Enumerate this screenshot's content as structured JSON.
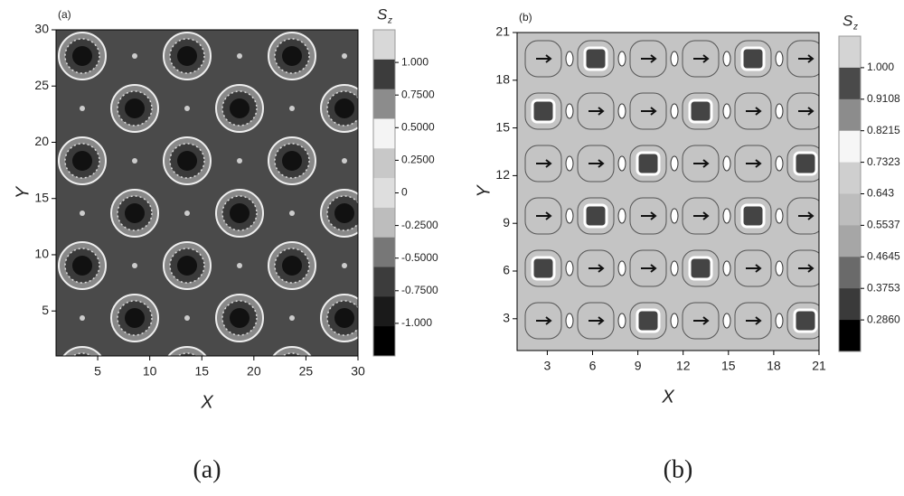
{
  "chart_data": [
    {
      "type": "contour",
      "panel_label": "(a)",
      "caption": "(a)",
      "x_label": "X",
      "y_label": "Y",
      "xlim": [
        1,
        30
      ],
      "ylim": [
        1,
        30
      ],
      "xticks": [
        5,
        10,
        15,
        20,
        25,
        30
      ],
      "yticks": [
        5,
        10,
        15,
        20,
        25,
        30
      ],
      "colorbar_title": "S",
      "colorbar_subscript": "z",
      "colorbar_levels": [
        {
          "value": 1,
          "label": "1.000"
        },
        {
          "value": 0.75,
          "label": "0.7500"
        },
        {
          "value": 0.5,
          "label": "0.5000"
        },
        {
          "value": 0.25,
          "label": "0.2500"
        },
        0,
        {
          "value": -0.25,
          "label": "-0.2500"
        },
        {
          "value": -0.5,
          "label": "-0.5000"
        },
        {
          "value": -0.75,
          "label": "-0.7500"
        },
        {
          "value": -1,
          "label": "-1.000"
        }
      ],
      "colorbar_colors": [
        "#d8d8d8",
        "#3c3c3c",
        "#8c8c8c",
        "#f4f4f4",
        "#c8c8c8",
        "#dedede",
        "#bdbdbd",
        "#777777",
        "#3c3c3c",
        "#1a1a1a",
        "#000000"
      ],
      "background": "#4a4a4a"
    },
    {
      "type": "contour",
      "panel_label": "(b)",
      "caption": "(b)",
      "x_label": "X",
      "y_label": "Y",
      "xlim": [
        1,
        21
      ],
      "ylim": [
        1,
        21
      ],
      "xticks": [
        3,
        6,
        9,
        12,
        15,
        18,
        21
      ],
      "yticks": [
        3,
        6,
        9,
        12,
        15,
        18,
        21
      ],
      "colorbar_title": "S",
      "colorbar_subscript": "z",
      "colorbar_levels": [
        {
          "value": 1,
          "label": "1.000"
        },
        0.9108,
        0.8215,
        0.7323,
        0.643,
        0.5537,
        {
          "value": 0.4645,
          "label": "0.4645"
        },
        0.3753,
        {
          "value": 0.286,
          "label": "0.2860"
        }
      ],
      "colorbar_colors": [
        "#d4d4d4",
        "#4a4a4a",
        "#8c8c8c",
        "#f6f6f6",
        "#cfcfcf",
        "#bdbdbd",
        "#a6a6a6",
        "#6a6a6a",
        "#3a3a3a",
        "#000000"
      ],
      "background": "#c4c4c4"
    }
  ]
}
